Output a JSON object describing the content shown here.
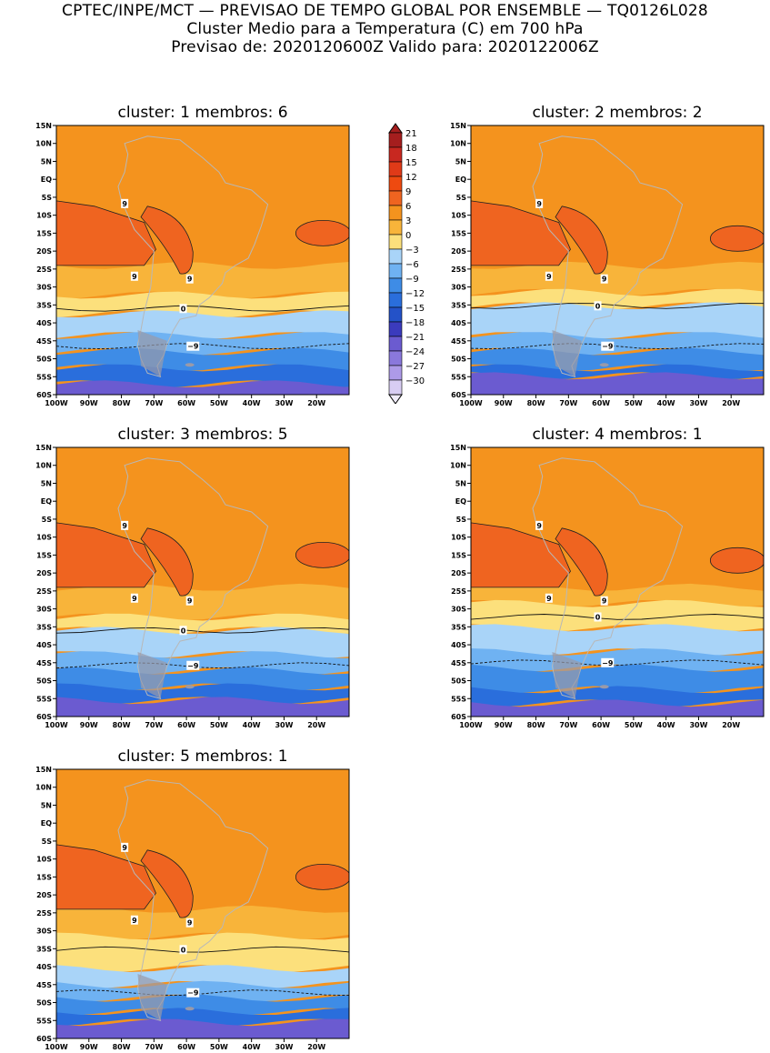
{
  "header": {
    "line1": "CPTEC/INPE/MCT — PREVISAO DE TEMPO GLOBAL POR ENSEMBLE — TQ0126L028",
    "line2": "Cluster Medio para a Temperatura (C) em 700 hPa",
    "line3": "Previsao de: 2020120600Z   Valido para: 2020122006Z"
  },
  "panels": [
    {
      "title": "cluster: 1   membros: 6"
    },
    {
      "title": "cluster: 2   membros: 2"
    },
    {
      "title": "cluster: 3   membros: 5"
    },
    {
      "title": "cluster: 4   membros: 1"
    },
    {
      "title": "cluster: 5   membros: 1"
    }
  ],
  "lat_labels": [
    "15N",
    "10N",
    "5N",
    "EQ",
    "5S",
    "10S",
    "15S",
    "20S",
    "25S",
    "30S",
    "35S",
    "40S",
    "45S",
    "50S",
    "55S",
    "60S"
  ],
  "lon_labels": [
    "100W",
    "90W",
    "80W",
    "70W",
    "60W",
    "50W",
    "40W",
    "30W",
    "20W"
  ],
  "contour_labels": {
    "warm": "9",
    "zero": "0",
    "cold": "−9",
    "cold2": "−9"
  },
  "colorbar": {
    "levels": [
      "21",
      "18",
      "15",
      "12",
      "9",
      "6",
      "3",
      "0",
      "−3",
      "−6",
      "−9",
      "−12",
      "−15",
      "−18",
      "−21",
      "−24",
      "−27",
      "−30"
    ],
    "colors": [
      "#a51e1e",
      "#c82820",
      "#e03a18",
      "#ee4a10",
      "#ef6420",
      "#f4931e",
      "#f8b43a",
      "#fce07c",
      "#a9d4f8",
      "#6fb2f2",
      "#3e8ce6",
      "#2a6edc",
      "#2452c8",
      "#3b3bbd",
      "#6b5bd0",
      "#8a78dc",
      "#ad9ae8",
      "#d8cdf3"
    ]
  },
  "colors": {
    "tropical": "#f4931e",
    "hot": "#ef6420",
    "warm_band": "#f8b43a",
    "cool_band": "#fce07c",
    "cold1": "#a9d4f8",
    "cold2": "#6fb2f2",
    "cold3": "#3e8ce6",
    "cold4": "#2a6edc",
    "polar": "#6b5bd0",
    "land": "#b8b8b8"
  }
}
